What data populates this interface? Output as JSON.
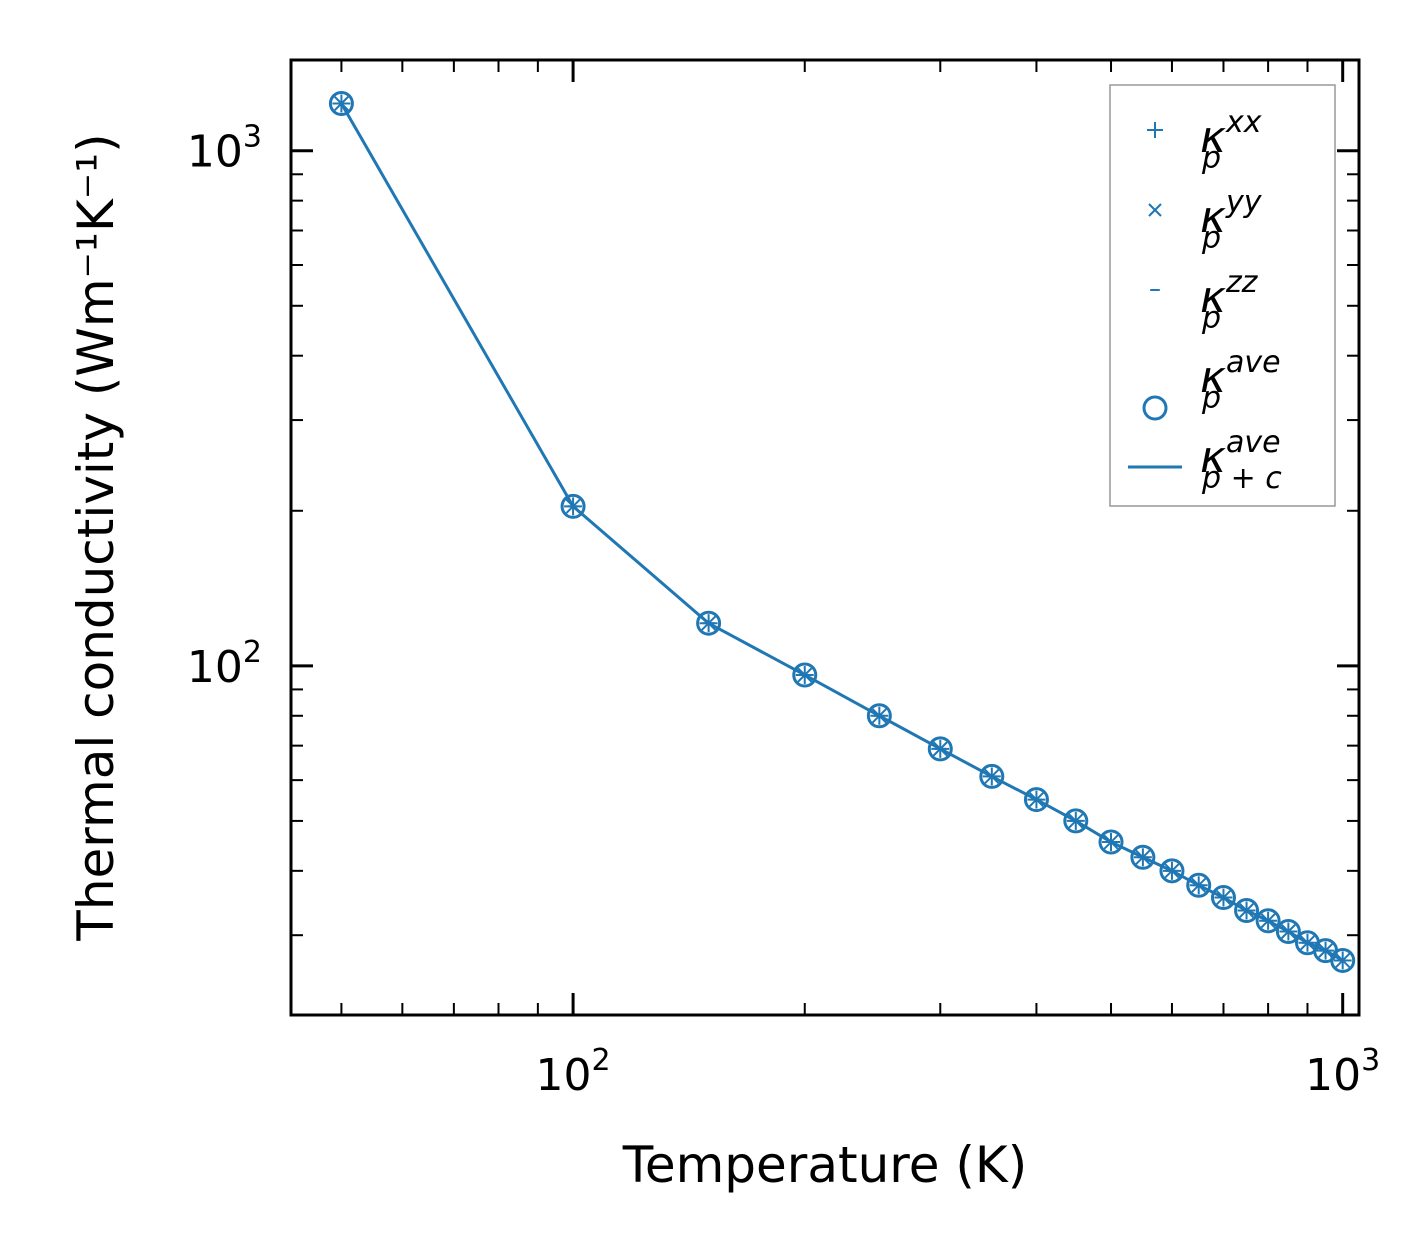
{
  "chart_data": {
    "type": "line",
    "xscale": "log",
    "yscale": "log",
    "xlabel": "Temperature (K)",
    "ylabel": "Thermal conductivity (Wm⁻¹K⁻¹)",
    "xlim": [
      43,
      1050
    ],
    "ylim": [
      21,
      1500
    ],
    "x_ticks": [
      {
        "value": 100,
        "base": "10",
        "exp": "2"
      },
      {
        "value": 1000,
        "base": "10",
        "exp": "3"
      }
    ],
    "y_ticks": [
      {
        "value": 100,
        "base": "10",
        "exp": "2"
      },
      {
        "value": 1000,
        "base": "10",
        "exp": "3"
      }
    ],
    "x": [
      50,
      100,
      150,
      200,
      250,
      300,
      350,
      400,
      450,
      500,
      550,
      600,
      650,
      700,
      750,
      800,
      850,
      900,
      950,
      1000
    ],
    "series": [
      {
        "name": "kxx",
        "marker": "+",
        "values": [
          1235,
          204,
          121,
          96,
          80,
          69,
          61,
          55,
          50,
          45.5,
          42.5,
          40,
          37.5,
          35.5,
          33.5,
          32,
          30.5,
          29,
          28,
          26.8
        ]
      },
      {
        "name": "kyy",
        "marker": "x",
        "values": [
          1235,
          204,
          121,
          96,
          80,
          69,
          61,
          55,
          50,
          45.5,
          42.5,
          40,
          37.5,
          35.5,
          33.5,
          32,
          30.5,
          29,
          28,
          26.8
        ]
      },
      {
        "name": "kzz",
        "marker": "_",
        "values": [
          1235,
          204,
          121,
          96,
          80,
          69,
          61,
          55,
          50,
          45.5,
          42.5,
          40,
          37.5,
          35.5,
          33.5,
          32,
          30.5,
          29,
          28,
          26.8
        ]
      },
      {
        "name": "kave",
        "marker": "o",
        "values": [
          1235,
          204,
          121,
          96,
          80,
          69,
          61,
          55,
          50,
          45.5,
          42.5,
          40,
          37.5,
          35.5,
          33.5,
          32,
          30.5,
          29,
          28,
          26.8
        ]
      },
      {
        "name": "kave_pc",
        "marker": "line",
        "values": [
          1235,
          204,
          121,
          96,
          80,
          69,
          61,
          55,
          50,
          45.5,
          42.5,
          40,
          37.5,
          35.5,
          33.5,
          32,
          30.5,
          29,
          28,
          26.8
        ]
      }
    ],
    "legend": {
      "position": "top-right",
      "entries": [
        {
          "symbol": "+",
          "base": "κ",
          "sup": "xx",
          "sub": "p"
        },
        {
          "symbol": "×",
          "base": "κ",
          "sup": "yy",
          "sub": "p"
        },
        {
          "symbol": "–",
          "base": "κ",
          "sup": "zz",
          "sub": "p"
        },
        {
          "symbol": "o",
          "base": "κ",
          "sup": "ave",
          "sub": "p"
        },
        {
          "symbol": "line",
          "base": "κ",
          "sup": "ave",
          "sub": "p + c"
        }
      ]
    },
    "color": "#1f77b4"
  }
}
